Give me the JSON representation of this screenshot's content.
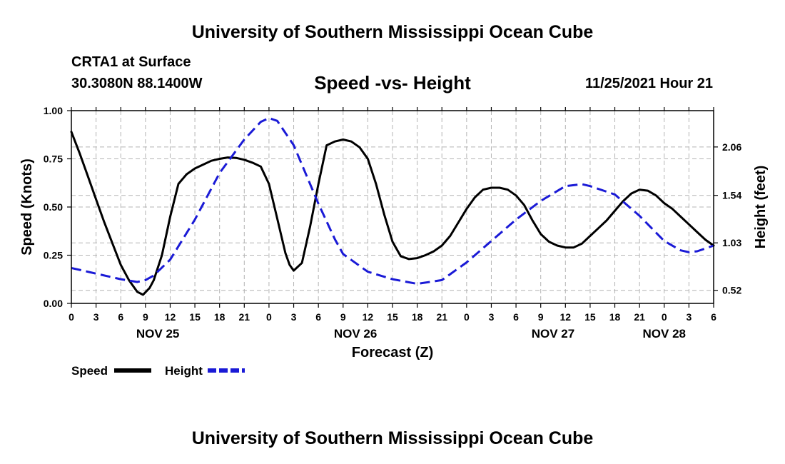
{
  "header": {
    "title": "University of Southern Mississippi Ocean Cube",
    "station": "CRTA1 at Surface",
    "coords": "30.3080N  88.1400W",
    "subtitle": "Speed -vs- Height",
    "datetime": "11/25/2021 Hour 21"
  },
  "footer": {
    "title": "University of Southern Mississippi Ocean Cube"
  },
  "colors": {
    "speed": "#000000",
    "height": "#1a1ad6",
    "grid": "#b4b4b4"
  },
  "chart_data": {
    "type": "line",
    "title": "Speed -vs- Height",
    "xlabel": "Forecast (Z)",
    "ylabel": "Speed (Knots)",
    "y2label": "Height (feet)",
    "x_unit": "hours from NOV 25 00Z",
    "xlim": [
      0,
      78
    ],
    "ylim": [
      0,
      1
    ],
    "y2lim": [
      0.38,
      2.45
    ],
    "grid": true,
    "x_ticks": [
      0,
      3,
      6,
      9,
      12,
      15,
      18,
      21,
      24,
      27,
      30,
      33,
      36,
      39,
      42,
      45,
      48,
      51,
      54,
      57,
      60,
      63,
      66,
      69,
      72,
      75,
      78
    ],
    "x_tick_labels": [
      "0",
      "3",
      "6",
      "9",
      "12",
      "15",
      "18",
      "21",
      "0",
      "3",
      "6",
      "9",
      "12",
      "15",
      "18",
      "21",
      "0",
      "3",
      "6",
      "9",
      "12",
      "15",
      "18",
      "21",
      "0",
      "3",
      "6"
    ],
    "date_labels": [
      {
        "x": 10.5,
        "label": "NOV 25"
      },
      {
        "x": 34.5,
        "label": "NOV 26"
      },
      {
        "x": 58.5,
        "label": "NOV 27"
      },
      {
        "x": 72,
        "label": "NOV 28"
      }
    ],
    "y_ticks": [
      0,
      0.25,
      0.5,
      0.75,
      1.0
    ],
    "y_tick_labels": [
      "0.00",
      "0.25",
      "0.50",
      "0.75",
      "1.00"
    ],
    "y2_ticks": [
      0.52,
      1.03,
      1.54,
      2.06
    ],
    "y2_tick_labels": [
      "0.52",
      "1.03",
      "1.54",
      "2.06"
    ],
    "legend": {
      "position": "bottom-left",
      "entries": [
        "Speed",
        "Height"
      ]
    },
    "series": [
      {
        "name": "Speed",
        "axis": "left",
        "style": "solid",
        "x": [
          0,
          1,
          2,
          3,
          4,
          5,
          6,
          7,
          8,
          8.7,
          9.5,
          10,
          11,
          12,
          13,
          14,
          15,
          16,
          17,
          18,
          19,
          20,
          21,
          22,
          23,
          24,
          25,
          26,
          26.5,
          27,
          28,
          29,
          30,
          31,
          32,
          33,
          34,
          35,
          36,
          37,
          38,
          39,
          40,
          41,
          42,
          43,
          44,
          45,
          46,
          47,
          48,
          49,
          50,
          51,
          52,
          53,
          54,
          55,
          56,
          57,
          58,
          59,
          60,
          61,
          62,
          63,
          64,
          65,
          66,
          67,
          68,
          69,
          70,
          71,
          72,
          73,
          74,
          75,
          76,
          77,
          78
        ],
        "values": [
          0.89,
          0.78,
          0.66,
          0.54,
          0.42,
          0.31,
          0.2,
          0.12,
          0.06,
          0.045,
          0.08,
          0.12,
          0.25,
          0.45,
          0.62,
          0.67,
          0.7,
          0.72,
          0.74,
          0.75,
          0.757,
          0.755,
          0.745,
          0.73,
          0.71,
          0.62,
          0.44,
          0.26,
          0.2,
          0.17,
          0.21,
          0.4,
          0.62,
          0.82,
          0.84,
          0.85,
          0.84,
          0.81,
          0.75,
          0.62,
          0.46,
          0.32,
          0.245,
          0.23,
          0.235,
          0.25,
          0.27,
          0.3,
          0.35,
          0.42,
          0.49,
          0.55,
          0.59,
          0.6,
          0.6,
          0.59,
          0.56,
          0.51,
          0.43,
          0.36,
          0.32,
          0.3,
          0.29,
          0.29,
          0.31,
          0.35,
          0.39,
          0.43,
          0.48,
          0.53,
          0.57,
          0.59,
          0.585,
          0.56,
          0.52,
          0.49,
          0.45,
          0.41,
          0.37,
          0.33,
          0.3
        ]
      },
      {
        "name": "Height",
        "axis": "right",
        "style": "dashed",
        "x": [
          0,
          3,
          6,
          8,
          9,
          10,
          12,
          15,
          18,
          21,
          23,
          24,
          25,
          27,
          30,
          32,
          33,
          36,
          39,
          42,
          45,
          48,
          51,
          54,
          57,
          60,
          62,
          63,
          65,
          66,
          69,
          72,
          74,
          75,
          76,
          78
        ],
        "values": [
          0.76,
          0.7,
          0.64,
          0.61,
          0.63,
          0.68,
          0.85,
          1.28,
          1.78,
          2.14,
          2.33,
          2.37,
          2.34,
          2.08,
          1.45,
          1.07,
          0.91,
          0.72,
          0.64,
          0.59,
          0.63,
          0.82,
          1.05,
          1.28,
          1.48,
          1.64,
          1.66,
          1.64,
          1.58,
          1.55,
          1.32,
          1.05,
          0.95,
          0.93,
          0.94,
          1.0
        ]
      }
    ]
  }
}
